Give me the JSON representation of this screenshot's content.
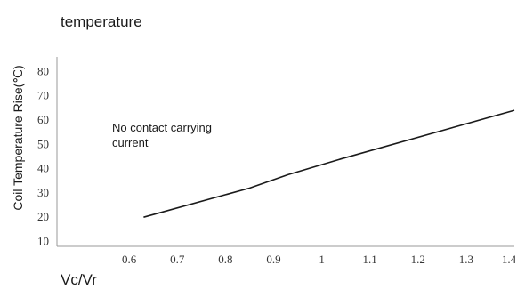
{
  "chart_data": {
    "type": "line",
    "title": "temperature",
    "xlabel": "Vc/Vr",
    "ylabel": "Coil Temperature Rise(℃)",
    "xlim": [
      0.45,
      1.4
    ],
    "ylim": [
      8,
      86
    ],
    "x_ticks": [
      "0.6",
      "0.7",
      "0.8",
      "0.9",
      "1",
      "1.1",
      "1.2",
      "1.3",
      "1.4"
    ],
    "x_tick_values": [
      0.6,
      0.7,
      0.8,
      0.9,
      1.0,
      1.1,
      1.2,
      1.3,
      1.4
    ],
    "y_ticks": [
      "10",
      "20",
      "30",
      "40",
      "50",
      "60",
      "70",
      "80"
    ],
    "y_tick_values": [
      10,
      20,
      30,
      40,
      50,
      60,
      70,
      80
    ],
    "grid": false,
    "annotation": {
      "lines": [
        "No contact carrying",
        "current"
      ]
    },
    "series": [
      {
        "x": [
          0.63,
          0.85,
          0.93,
          1.04,
          1.4
        ],
        "y": [
          20,
          32,
          37.5,
          44,
          64
        ]
      }
    ],
    "colors": {
      "axis": "#999999",
      "line": "#1a1a1a",
      "text": "#1a1a1a"
    }
  }
}
